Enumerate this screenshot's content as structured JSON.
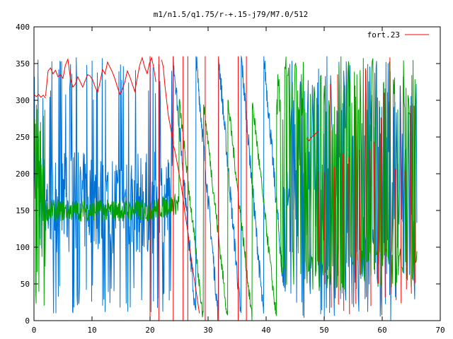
{
  "chart_data": {
    "type": "line",
    "title": "m1/n1.5/q1.75/r-+.15-j79/M7.0/512",
    "xlabel": "",
    "ylabel": "",
    "xlim": [
      0,
      70
    ],
    "ylim": [
      0,
      400
    ],
    "x_ticks": [
      "0",
      "10",
      "20",
      "30",
      "40",
      "50",
      "60",
      "70"
    ],
    "y_ticks": [
      "0",
      "50",
      "100",
      "150",
      "200",
      "250",
      "300",
      "350",
      "400"
    ],
    "grid": false,
    "legend_position": "top-right",
    "x_end": 66,
    "wrap_max": 360,
    "series": [
      {
        "name": "fort.23",
        "color": "#ff0000",
        "segments": [
          {
            "x0": 0.0,
            "x1": 2.0,
            "y": [
              308,
              305,
              308,
              304,
              307,
              303
            ]
          },
          {
            "x0": 2.0,
            "x1": 19.5,
            "y": [
              306,
              340,
              344,
              336,
              341,
              332,
              335,
              330,
              348,
              356,
              330,
              318,
              322,
              332,
              325,
              318,
              327,
              335,
              333,
              328,
              318,
              311,
              325,
              342,
              336,
              352,
              345,
              338,
              329,
              318,
              308,
              315,
              325,
              340,
              332,
              322,
              312,
              330,
              348,
              358,
              345,
              336
            ]
          },
          {
            "x0": 19.5,
            "x1": 21.0,
            "y": [
              336,
              350,
              358,
              345,
              325
            ]
          },
          {
            "x0": 22.0,
            "x1": 28.5,
            "y": [
              355,
              345,
              320,
              300,
              280,
              268,
              255,
              240,
              232,
              220,
              208,
              195,
              182,
              168,
              150,
              135,
              120,
              100,
              85,
              70,
              55,
              40,
              25,
              10
            ]
          },
          {
            "x0": 47.0,
            "x1": 49.0,
            "y": [
              248,
              245,
              250,
              252,
              255,
              258
            ]
          },
          {
            "x0": 49.0,
            "x1": 66.0,
            "spikes": true
          }
        ]
      }
    ]
  }
}
